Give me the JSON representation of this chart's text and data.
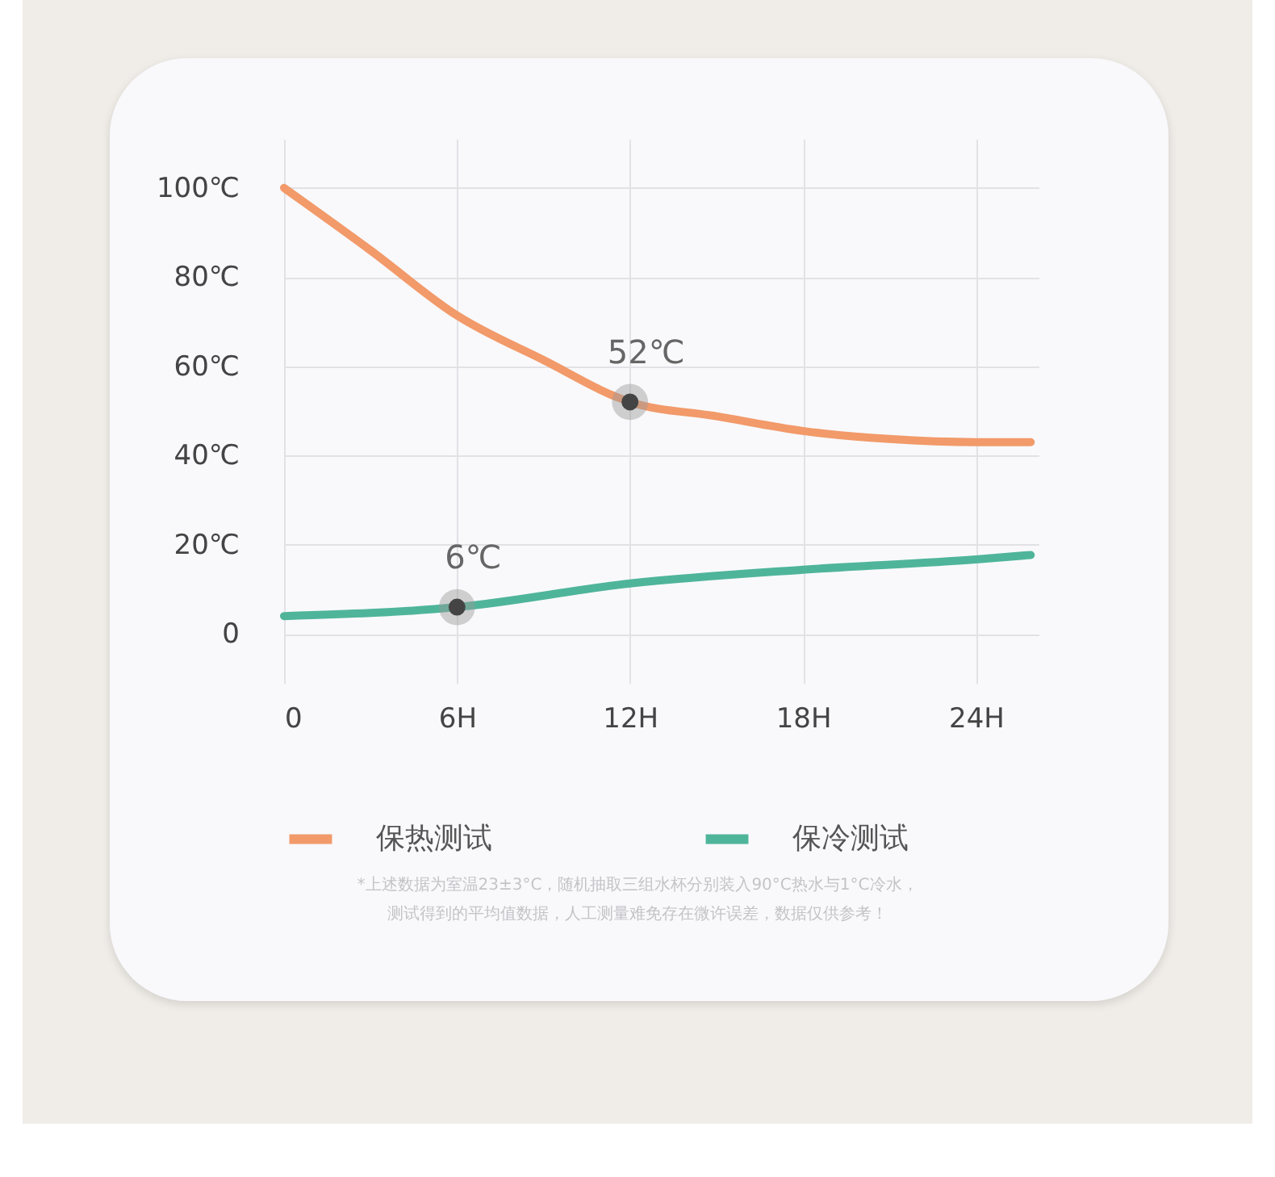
{
  "chart_data": {
    "type": "line",
    "x": [
      0,
      3,
      6,
      9,
      12,
      15,
      18,
      21,
      24,
      25.9
    ],
    "series": [
      {
        "name": "保热测试",
        "color": "#f29a6a",
        "values": [
          100,
          86,
          71.4,
          61.4,
          52,
          48.8,
          45.5,
          43.7,
          43,
          43
        ]
      },
      {
        "name": "保冷测试",
        "color": "#4fb59a",
        "x": [
          0,
          6,
          12,
          18,
          24,
          25.9
        ],
        "values": [
          4,
          6,
          11.3,
          14.4,
          16.7,
          17.7
        ]
      }
    ],
    "xlim": [
      0,
      26.2
    ],
    "xticks": [
      {
        "value": 0,
        "label": "0"
      },
      {
        "value": 6,
        "label": "6H"
      },
      {
        "value": 12,
        "label": "12H"
      },
      {
        "value": 18,
        "label": "18H"
      },
      {
        "value": 24,
        "label": "24H"
      }
    ],
    "ylim": [
      -11,
      111
    ],
    "yticks": [
      {
        "value": 0,
        "label": "0"
      },
      {
        "value": 20,
        "label": "20℃"
      },
      {
        "value": 40,
        "label": "40℃"
      },
      {
        "value": 60,
        "label": "60℃"
      },
      {
        "value": 80,
        "label": "80℃"
      },
      {
        "value": 100,
        "label": "100℃"
      }
    ],
    "annotations": [
      {
        "text": "52℃",
        "x": 12,
        "y": 52
      },
      {
        "text": "6℃",
        "x": 6,
        "y": 6
      },
      "*上述数据为室温23±3°C，随机抽取三组水杯分别装入90°C热水与1°C冷水，",
      "测试得到的平均值数据，人工测量难免存在微许误差，数据仅供参考！"
    ],
    "grid": true,
    "legend": "bottom",
    "marker": "none",
    "line_style": "solid"
  }
}
